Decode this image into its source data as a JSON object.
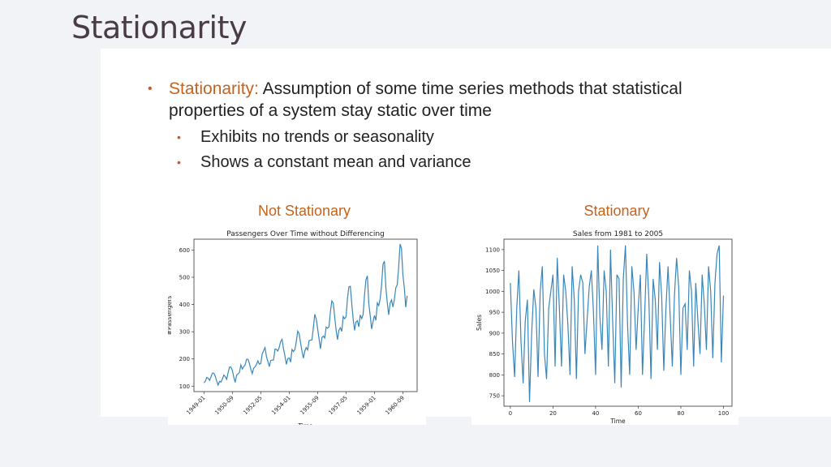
{
  "slide": {
    "title": "Stationarity"
  },
  "bullets": {
    "main_term": "Stationarity:",
    "main_text": " Assumption of some time series methods that statistical properties of a system stay static over time",
    "sub_items": [
      "Exhibits no trends or seasonality",
      "Shows a constant mean and variance"
    ]
  },
  "headings": {
    "left": "Not Stationary",
    "right": "Stationary"
  },
  "colors": {
    "accent": "#c4631c",
    "line": "#3a86b8"
  },
  "chart_data": [
    {
      "type": "line",
      "title": "Passengers Over Time without Differencing",
      "xlabel": "Time",
      "ylabel": "#Passengers",
      "x_ticks": [
        "1949-01",
        "1950-09",
        "1952-05",
        "1954-01",
        "1955-09",
        "1957-05",
        "1959-01",
        "1960-09"
      ],
      "y_ticks": [
        100,
        200,
        300,
        400,
        500,
        600
      ],
      "ylim": [
        80,
        640
      ],
      "x": [
        "1949-01",
        "1949-02",
        "1949-03",
        "1949-04",
        "1949-05",
        "1949-06",
        "1949-07",
        "1949-08",
        "1949-09",
        "1949-10",
        "1949-11",
        "1949-12",
        "1950-01",
        "1950-02",
        "1950-03",
        "1950-04",
        "1950-05",
        "1950-06",
        "1950-07",
        "1950-08",
        "1950-09",
        "1950-10",
        "1950-11",
        "1950-12",
        "1951-01",
        "1951-02",
        "1951-03",
        "1951-04",
        "1951-05",
        "1951-06",
        "1951-07",
        "1951-08",
        "1951-09",
        "1951-10",
        "1951-11",
        "1951-12",
        "1952-01",
        "1952-02",
        "1952-03",
        "1952-04",
        "1952-05",
        "1952-06",
        "1952-07",
        "1952-08",
        "1952-09",
        "1952-10",
        "1952-11",
        "1952-12",
        "1953-01",
        "1953-02",
        "1953-03",
        "1953-04",
        "1953-05",
        "1953-06",
        "1953-07",
        "1953-08",
        "1953-09",
        "1953-10",
        "1953-11",
        "1953-12",
        "1954-01",
        "1954-02",
        "1954-03",
        "1954-04",
        "1954-05",
        "1954-06",
        "1954-07",
        "1954-08",
        "1954-09",
        "1954-10",
        "1954-11",
        "1954-12",
        "1955-01",
        "1955-02",
        "1955-03",
        "1955-04",
        "1955-05",
        "1955-06",
        "1955-07",
        "1955-08",
        "1955-09",
        "1955-10",
        "1955-11",
        "1955-12",
        "1956-01",
        "1956-02",
        "1956-03",
        "1956-04",
        "1956-05",
        "1956-06",
        "1956-07",
        "1956-08",
        "1956-09",
        "1956-10",
        "1956-11",
        "1956-12",
        "1957-01",
        "1957-02",
        "1957-03",
        "1957-04",
        "1957-05",
        "1957-06",
        "1957-07",
        "1957-08",
        "1957-09",
        "1957-10",
        "1957-11",
        "1957-12",
        "1958-01",
        "1958-02",
        "1958-03",
        "1958-04",
        "1958-05",
        "1958-06",
        "1958-07",
        "1958-08",
        "1958-09",
        "1958-10",
        "1958-11",
        "1958-12",
        "1959-01",
        "1959-02",
        "1959-03",
        "1959-04",
        "1959-05",
        "1959-06",
        "1959-07",
        "1959-08",
        "1959-09",
        "1959-10",
        "1959-11",
        "1959-12",
        "1960-01",
        "1960-02",
        "1960-03",
        "1960-04",
        "1960-05",
        "1960-06",
        "1960-07",
        "1960-08",
        "1960-09",
        "1960-10",
        "1960-11",
        "1960-12"
      ],
      "values": [
        112,
        118,
        132,
        129,
        121,
        135,
        148,
        148,
        136,
        119,
        104,
        118,
        115,
        126,
        141,
        135,
        125,
        149,
        170,
        170,
        158,
        133,
        114,
        140,
        145,
        150,
        178,
        163,
        172,
        178,
        199,
        199,
        184,
        162,
        146,
        166,
        171,
        180,
        193,
        181,
        183,
        218,
        230,
        242,
        209,
        191,
        172,
        194,
        196,
        196,
        236,
        235,
        229,
        243,
        264,
        272,
        237,
        211,
        180,
        201,
        204,
        188,
        235,
        227,
        234,
        264,
        302,
        293,
        259,
        229,
        203,
        229,
        242,
        233,
        267,
        269,
        270,
        315,
        364,
        347,
        312,
        274,
        237,
        278,
        284,
        277,
        317,
        313,
        318,
        374,
        413,
        405,
        355,
        306,
        271,
        306,
        315,
        301,
        356,
        348,
        355,
        422,
        465,
        467,
        404,
        347,
        305,
        336,
        340,
        318,
        362,
        348,
        363,
        435,
        491,
        505,
        404,
        359,
        310,
        337,
        360,
        342,
        406,
        396,
        420,
        472,
        548,
        559,
        463,
        407,
        362,
        405,
        417,
        391,
        419,
        461,
        472,
        535,
        622,
        606,
        508,
        461,
        390,
        432
      ]
    },
    {
      "type": "line",
      "title": "Sales from 1981 to 2005",
      "xlabel": "Time",
      "ylabel": "Sales",
      "x_ticks": [
        0,
        20,
        40,
        60,
        80,
        100
      ],
      "y_ticks": [
        750,
        800,
        850,
        900,
        950,
        1000,
        1050,
        1100
      ],
      "xlim": [
        -3,
        104
      ],
      "ylim": [
        725,
        1125
      ],
      "x_start": 0,
      "values": [
        1020,
        880,
        795,
        960,
        1050,
        880,
        780,
        930,
        980,
        735,
        900,
        1005,
        960,
        795,
        1000,
        1060,
        850,
        790,
        960,
        1000,
        1040,
        820,
        1080,
        960,
        820,
        1040,
        1000,
        920,
        800,
        1060,
        980,
        790,
        1000,
        1040,
        1020,
        850,
        930,
        1010,
        1050,
        950,
        800,
        1110,
        940,
        860,
        1050,
        1000,
        820,
        1100,
        930,
        780,
        1040,
        1030,
        770,
        1030,
        1110,
        920,
        800,
        1060,
        1000,
        860,
        960,
        1040,
        800,
        940,
        1090,
        980,
        790,
        1030,
        980,
        860,
        1070,
        990,
        810,
        960,
        1060,
        940,
        820,
        990,
        1080,
        1010,
        800,
        960,
        970,
        860,
        1050,
        1000,
        820,
        1020,
        930,
        850,
        1040,
        970,
        860,
        1060,
        1000,
        840,
        1020,
        1090,
        1110,
        830,
        990
      ]
    }
  ]
}
